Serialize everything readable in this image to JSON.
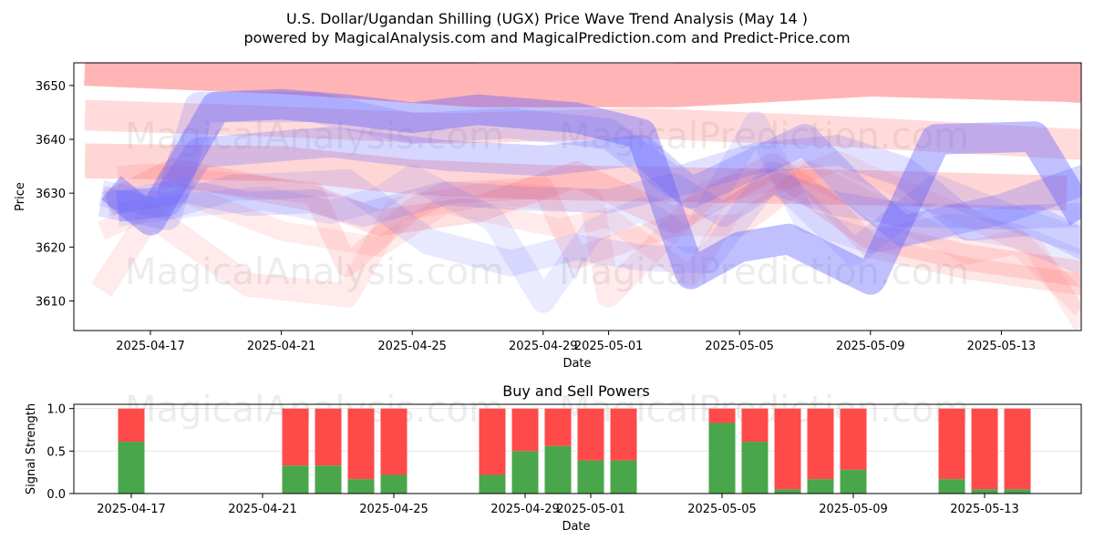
{
  "chart_data": [
    {
      "type": "line",
      "title": "U.S. Dollar/Ugandan Shilling (UGX) Price Wave Trend Analysis (May 14 )",
      "subtitle": "powered by MagicalAnalysis.com and MagicalPrediction.com and Predict-Price.com",
      "xlabel": "Date",
      "ylabel": "Price",
      "x_ticks": [
        "2025-04-17",
        "2025-04-21",
        "2025-04-25",
        "2025-04-29",
        "2025-05-01",
        "2025-05-05",
        "2025-05-09",
        "2025-05-13"
      ],
      "y_ticks": [
        3610,
        3620,
        3630,
        3640,
        3650
      ],
      "xlim": [
        -2.3,
        29.5
      ],
      "ylim": [
        3604.5,
        3654.2
      ],
      "grid": false,
      "watermarks": [
        "MagicalAnalysis.com",
        "MagicalPrediction.com"
      ],
      "red_color": "#ff5a5a",
      "blue_color": "#5a5aff",
      "red_bands": [
        {
          "x": [
            -2.0,
            4.0,
            10.0,
            16.0,
            22.0,
            28.0,
            29.0
          ],
          "y": [
            3654.0,
            3652.5,
            3650.0,
            3650.0,
            3652.0,
            3651.0,
            3650.5
          ],
          "width": 20,
          "opacity": 0.45
        },
        {
          "x": [
            -2.0,
            3.0,
            9.0,
            15.0,
            21.0,
            28.5
          ],
          "y": [
            3644.5,
            3643.5,
            3642.0,
            3643.0,
            3641.5,
            3639.0
          ],
          "width": 14,
          "opacity": 0.22
        },
        {
          "x": [
            -2.0,
            4.0,
            8.0,
            12.0,
            17.0,
            22.0,
            28.0
          ],
          "y": [
            3636.0,
            3635.5,
            3633.0,
            3632.0,
            3631.5,
            3631.0,
            3630.0
          ],
          "width": 16,
          "opacity": 0.25
        },
        {
          "x": [
            -1.3,
            0.7,
            5.0,
            7.0,
            10.0,
            13.0,
            16.0,
            19.0,
            22.0,
            25.0,
            28.5
          ],
          "y": [
            3628.0,
            3634.0,
            3629.0,
            3624.5,
            3627.0,
            3633.5,
            3625.0,
            3635.0,
            3622.0,
            3618.0,
            3615.0
          ],
          "width": 12,
          "opacity": 0.18
        },
        {
          "x": [
            -1.5,
            0.0,
            3.0,
            6.0,
            7.5,
            10.5,
            13.5,
            14.0,
            17.0,
            20.0,
            22.0,
            25.0,
            26.5,
            28.5
          ],
          "y": [
            3612.0,
            3626.0,
            3613.0,
            3611.0,
            3627.0,
            3630.0,
            3628.5,
            3611.0,
            3630.0,
            3634.0,
            3628.0,
            3619.0,
            3621.0,
            3609.0
          ],
          "width": 11,
          "opacity": 0.12
        },
        {
          "x": [
            -1.5,
            1.0,
            4.0,
            7.0,
            9.0,
            12.5,
            14.0,
            16.5,
            18.0,
            21.0,
            24.0,
            27.0,
            28.5
          ],
          "y": [
            3623.0,
            3630.0,
            3623.0,
            3620.0,
            3628.0,
            3623.5,
            3625.5,
            3614.5,
            3629.0,
            3636.0,
            3628.0,
            3620.0,
            3605.5
          ],
          "width": 9,
          "opacity": 0.12
        },
        {
          "x": [
            -1.0,
            0.0,
            5.0,
            6.0,
            8.0,
            9.0,
            12.0,
            13.0,
            16.0,
            18.0,
            20.0,
            22.0,
            25.0,
            28.5
          ],
          "y": [
            3633.0,
            3633.5,
            3630.0,
            3616.5,
            3627.0,
            3630.0,
            3631.0,
            3618.0,
            3624.0,
            3624.0,
            3633.0,
            3620.0,
            3616.0,
            3613.0
          ],
          "width": 10,
          "opacity": 0.15
        }
      ],
      "blue_bands": [
        {
          "x": [
            -1.5,
            0.5,
            1.5,
            5.0,
            8.0,
            11.0,
            14.0,
            16.0,
            18.5,
            21.0,
            23.0,
            25.0,
            27.0,
            29.0
          ],
          "y": [
            3628.5,
            3626.0,
            3646.0,
            3646.0,
            3642.0,
            3643.0,
            3641.0,
            3632.0,
            3636.5,
            3638.0,
            3634.0,
            3624.0,
            3625.0,
            3619.0
          ],
          "width": 14,
          "opacity": 0.18
        },
        {
          "x": [
            -1.2,
            0.0,
            2.0,
            4.0,
            6.0,
            8.0,
            10.0,
            13.0,
            15.0,
            16.5,
            18.0,
            19.5,
            21.0,
            22.0,
            24.0,
            27.0,
            28.5
          ],
          "y": [
            3631.0,
            3625.0,
            3646.0,
            3646.5,
            3645.5,
            3644.0,
            3645.5,
            3644.0,
            3641.0,
            3615.0,
            3620.0,
            3621.5,
            3617.0,
            3614.0,
            3640.0,
            3640.5,
            3625.5
          ],
          "width": 14,
          "opacity": 0.38
        },
        {
          "x": [
            -1.0,
            0.5,
            1.5,
            5.5,
            9.0,
            12.0,
            15.0,
            16.5,
            20.0,
            21.5,
            23.0,
            26.0,
            29.0
          ],
          "y": [
            3627.5,
            3628.5,
            3637.5,
            3639.5,
            3637.0,
            3636.0,
            3638.0,
            3630.0,
            3640.0,
            3630.5,
            3623.0,
            3627.0,
            3633.5
          ],
          "width": 14,
          "opacity": 0.25
        },
        {
          "x": [
            -1.3,
            1.0,
            3.0,
            5.0,
            6.5,
            9.0,
            11.5,
            14.0,
            16.0,
            17.5,
            19.0,
            21.0,
            23.0,
            26.0,
            28.5
          ],
          "y": [
            3628.0,
            3630.5,
            3628.0,
            3628.5,
            3626.0,
            3630.0,
            3629.0,
            3628.5,
            3631.5,
            3626.0,
            3632.0,
            3628.0,
            3626.0,
            3625.5,
            3626.0
          ],
          "width": 11,
          "opacity": 0.16
        },
        {
          "x": [
            -1.5,
            0.5,
            2.5,
            4.5,
            6.0,
            8.5,
            11.0,
            13.0,
            15.0,
            17.0,
            19.0,
            21.5,
            24.0,
            26.5,
            28.5
          ],
          "y": [
            3630.0,
            3627.5,
            3631.0,
            3631.5,
            3632.0,
            3621.0,
            3617.0,
            3620.0,
            3618.0,
            3617.5,
            3633.5,
            3619.0,
            3631.0,
            3625.0,
            3621.0
          ],
          "width": 12,
          "opacity": 0.14
        },
        {
          "x": [
            -1.0,
            1.5,
            3.5,
            5.5,
            7.0,
            8.0,
            10.5,
            12.0,
            13.5,
            15.0,
            16.5,
            18.5,
            20.0,
            22.0,
            24.5,
            26.5,
            28.5
          ],
          "y": [
            3626.0,
            3628.0,
            3629.0,
            3626.5,
            3629.0,
            3633.0,
            3625.0,
            3610.0,
            3623.0,
            3627.0,
            3621.0,
            3643.0,
            3625.0,
            3621.0,
            3624.0,
            3622.0,
            3617.0
          ],
          "width": 11,
          "opacity": 0.12
        }
      ]
    },
    {
      "type": "bar",
      "title": "Buy and Sell Powers",
      "xlabel": "Date",
      "ylabel": "Signal Strength",
      "x_ticks": [
        "2025-04-17",
        "2025-04-21",
        "2025-04-25",
        "2025-04-29",
        "2025-05-01",
        "2025-05-05",
        "2025-05-09",
        "2025-05-13"
      ],
      "y_ticks": [
        "0.0",
        "0.5",
        "1.0"
      ],
      "ylim": [
        0,
        1.05
      ],
      "grid": true,
      "watermarks": [
        "MagicalAnalysis.com",
        "MagicalPrediction.com"
      ],
      "buy_color": "#4aa64a",
      "sell_color": "#ff4a4a",
      "bars": [
        {
          "date": "2025-04-17",
          "buy": 0.61,
          "sell": 0.39
        },
        {
          "date": "2025-04-22",
          "buy": 0.33,
          "sell": 0.67
        },
        {
          "date": "2025-04-23",
          "buy": 0.33,
          "sell": 0.67
        },
        {
          "date": "2025-04-24",
          "buy": 0.17,
          "sell": 0.83
        },
        {
          "date": "2025-04-25",
          "buy": 0.22,
          "sell": 0.78
        },
        {
          "date": "2025-04-28",
          "buy": 0.22,
          "sell": 0.78
        },
        {
          "date": "2025-04-29",
          "buy": 0.5,
          "sell": 0.5
        },
        {
          "date": "2025-04-30",
          "buy": 0.56,
          "sell": 0.44
        },
        {
          "date": "2025-05-01",
          "buy": 0.39,
          "sell": 0.61
        },
        {
          "date": "2025-05-02",
          "buy": 0.39,
          "sell": 0.61
        },
        {
          "date": "2025-05-05",
          "buy": 0.83,
          "sell": 0.17
        },
        {
          "date": "2025-05-06",
          "buy": 0.61,
          "sell": 0.39
        },
        {
          "date": "2025-05-07",
          "buy": 0.05,
          "sell": 0.95
        },
        {
          "date": "2025-05-08",
          "buy": 0.17,
          "sell": 0.83
        },
        {
          "date": "2025-05-09",
          "buy": 0.28,
          "sell": 0.72
        },
        {
          "date": "2025-05-12",
          "buy": 0.17,
          "sell": 0.83
        },
        {
          "date": "2025-05-13",
          "buy": 0.05,
          "sell": 0.95
        },
        {
          "date": "2025-05-14",
          "buy": 0.05,
          "sell": 0.95
        }
      ]
    }
  ]
}
